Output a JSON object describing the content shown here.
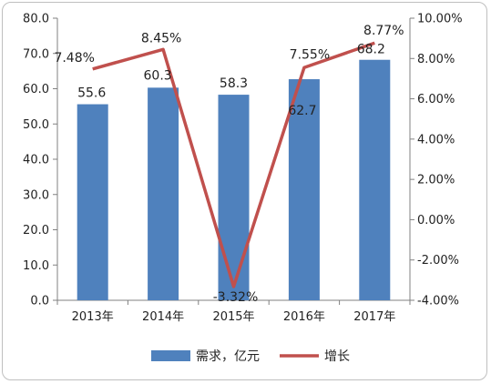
{
  "chart_data": {
    "type": "bar+line",
    "categories": [
      "2013年",
      "2014年",
      "2015年",
      "2016年",
      "2017年"
    ],
    "series": [
      {
        "name": "需求，亿元",
        "type": "bar",
        "axis": "left",
        "color": "#4f81bd",
        "values": [
          55.6,
          60.3,
          58.3,
          62.7,
          68.2
        ],
        "labels": [
          "55.6",
          "60.3",
          "58.3",
          "62.7",
          "68.2"
        ]
      },
      {
        "name": "增长",
        "type": "line",
        "axis": "right",
        "color": "#c0504d",
        "values": [
          7.48,
          8.45,
          -3.32,
          7.55,
          8.77
        ],
        "labels": [
          "7.48%",
          "8.45%",
          "-3.32%",
          "7.55%",
          "8.77%"
        ]
      }
    ],
    "left_axis": {
      "ylim": [
        0,
        80
      ],
      "ticks": [
        "0.0",
        "10.0",
        "20.0",
        "30.0",
        "40.0",
        "50.0",
        "60.0",
        "70.0",
        "80.0"
      ]
    },
    "right_axis": {
      "ylim": [
        -4,
        10
      ],
      "ticks": [
        "-4.00%",
        "-2.00%",
        "0.00%",
        "2.00%",
        "4.00%",
        "6.00%",
        "8.00%",
        "10.00%"
      ]
    },
    "grid": false,
    "legend_position": "bottom"
  }
}
